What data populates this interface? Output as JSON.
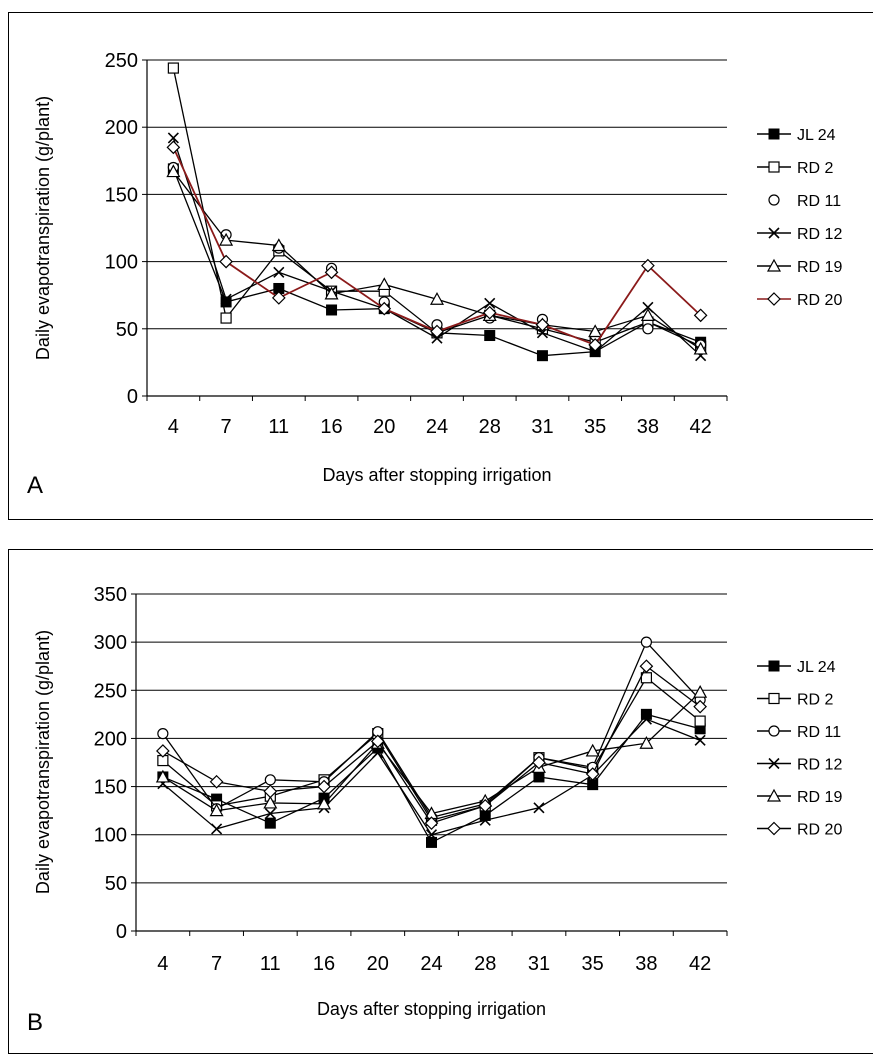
{
  "chart_data": [
    {
      "type": "line",
      "panel_label": "A",
      "xlabel": "Days after stopping irrigation",
      "ylabel": "Daily evapotranspiration (g/plant)",
      "ylim": [
        0,
        250
      ],
      "yticks": [
        0,
        50,
        100,
        150,
        200,
        250
      ],
      "grid": true,
      "legend": "right",
      "categories": [
        "4",
        "7",
        "11",
        "16",
        "20",
        "24",
        "28",
        "31",
        "35",
        "38",
        "42"
      ],
      "series": [
        {
          "name": "JL 24",
          "marker": "filled-square",
          "color": "#000000",
          "line": true,
          "values": [
            169,
            70,
            80,
            64,
            65,
            47,
            45,
            30,
            33,
            55,
            40
          ]
        },
        {
          "name": "RD 2",
          "marker": "open-square",
          "color": "#000000",
          "line": true,
          "values": [
            244,
            58,
            108,
            78,
            78,
            47,
            60,
            50,
            40,
            55,
            37
          ]
        },
        {
          "name": "RD 11",
          "marker": "open-circle",
          "color": "#000000",
          "line": false,
          "values": [
            170,
            120,
            110,
            95,
            70,
            53,
            58,
            57,
            45,
            50,
            38
          ]
        },
        {
          "name": "RD 12",
          "marker": "cross",
          "color": "#000000",
          "line": true,
          "values": [
            192,
            72,
            92,
            78,
            65,
            43,
            69,
            47,
            33,
            66,
            30
          ]
        },
        {
          "name": "RD 19",
          "marker": "open-triangle",
          "color": "#000000",
          "line": true,
          "values": [
            167,
            116,
            112,
            76,
            83,
            72,
            60,
            53,
            48,
            60,
            35
          ]
        },
        {
          "name": "RD 20",
          "marker": "open-diamond",
          "color": "#8b1a1a",
          "line": true,
          "values": [
            185,
            100,
            73,
            92,
            65,
            48,
            62,
            53,
            38,
            97,
            60
          ]
        }
      ]
    },
    {
      "type": "line",
      "panel_label": "B",
      "xlabel": "Days after stopping irrigation",
      "ylabel": "Daily evapotranspiration (g/plant)",
      "ylim": [
        0,
        350
      ],
      "yticks": [
        0,
        50,
        100,
        150,
        200,
        250,
        300,
        350
      ],
      "grid": true,
      "legend": "right",
      "categories": [
        "4",
        "7",
        "11",
        "16",
        "20",
        "24",
        "28",
        "31",
        "35",
        "38",
        "42"
      ],
      "series": [
        {
          "name": "JL 24",
          "marker": "filled-square",
          "color": "#000000",
          "line": true,
          "values": [
            160,
            137,
            112,
            138,
            190,
            92,
            120,
            160,
            152,
            225,
            210
          ]
        },
        {
          "name": "RD 2",
          "marker": "open-square",
          "color": "#000000",
          "line": true,
          "values": [
            177,
            130,
            140,
            157,
            205,
            115,
            130,
            180,
            168,
            263,
            218
          ]
        },
        {
          "name": "RD 11",
          "marker": "open-circle",
          "color": "#000000",
          "line": true,
          "values": [
            205,
            127,
            157,
            155,
            207,
            118,
            132,
            180,
            170,
            300,
            240
          ]
        },
        {
          "name": "RD 12",
          "marker": "cross",
          "color": "#000000",
          "line": true,
          "values": [
            153,
            106,
            122,
            128,
            185,
            100,
            115,
            128,
            162,
            220,
            198
          ]
        },
        {
          "name": "RD 19",
          "marker": "open-triangle",
          "color": "#000000",
          "line": true,
          "values": [
            160,
            125,
            133,
            132,
            195,
            122,
            135,
            170,
            187,
            195,
            248
          ]
        },
        {
          "name": "RD 20",
          "marker": "open-diamond",
          "color": "#000000",
          "line": true,
          "values": [
            187,
            155,
            145,
            150,
            197,
            112,
            130,
            175,
            163,
            275,
            233
          ]
        }
      ]
    }
  ]
}
